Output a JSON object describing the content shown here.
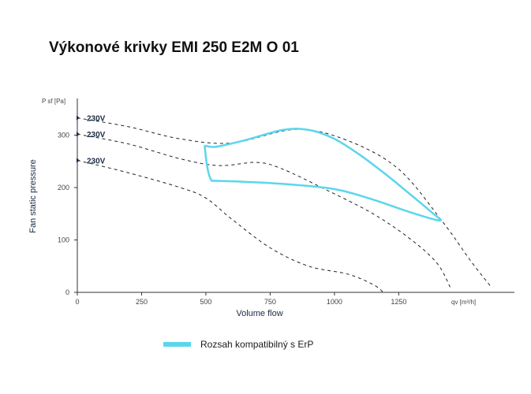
{
  "title": "Výkonové krivky EMI 250 E2M O 01",
  "chart_data": {
    "type": "line",
    "xlabel": "Volume flow",
    "ylabel": "Fan static pressure",
    "x_unit": "qv [m³/h]",
    "y_unit": "P sf [Pa]",
    "xlim": [
      0,
      1700
    ],
    "ylim": [
      0,
      370
    ],
    "x_ticks": [
      0,
      250,
      500,
      750,
      1000,
      1250
    ],
    "y_ticks": [
      0,
      100,
      200,
      300
    ],
    "grid": false,
    "series": [
      {
        "name": "230V",
        "style": "dashed",
        "points": [
          [
            0,
            333
          ],
          [
            200,
            316
          ],
          [
            400,
            293
          ],
          [
            600,
            285
          ],
          [
            850,
            311
          ],
          [
            1050,
            290
          ],
          [
            1250,
            235
          ],
          [
            1420,
            135
          ],
          [
            1530,
            60
          ],
          [
            1610,
            10
          ]
        ]
      },
      {
        "name": "230V",
        "style": "dashed",
        "points": [
          [
            0,
            302
          ],
          [
            200,
            283
          ],
          [
            400,
            255
          ],
          [
            550,
            242
          ],
          [
            700,
            248
          ],
          [
            800,
            235
          ],
          [
            950,
            200
          ],
          [
            1150,
            150
          ],
          [
            1300,
            100
          ],
          [
            1400,
            55
          ],
          [
            1450,
            10
          ]
        ]
      },
      {
        "name": "230V",
        "style": "dashed",
        "points": [
          [
            0,
            252
          ],
          [
            200,
            228
          ],
          [
            400,
            200
          ],
          [
            500,
            180
          ],
          [
            600,
            140
          ],
          [
            750,
            85
          ],
          [
            900,
            50
          ],
          [
            1050,
            35
          ],
          [
            1150,
            15
          ],
          [
            1190,
            0
          ]
        ]
      },
      {
        "name": "Rozsah kompatibilný s ErP",
        "style": "solid",
        "color": "#5bd6ec",
        "points": [
          [
            495,
            280
          ],
          [
            540,
            278
          ],
          [
            650,
            290
          ],
          [
            800,
            310
          ],
          [
            900,
            310
          ],
          [
            1000,
            293
          ],
          [
            1100,
            262
          ],
          [
            1200,
            225
          ],
          [
            1300,
            185
          ],
          [
            1380,
            152
          ],
          [
            1410,
            137
          ],
          [
            1300,
            152
          ],
          [
            1150,
            177
          ],
          [
            1000,
            197
          ],
          [
            800,
            207
          ],
          [
            650,
            211
          ],
          [
            540,
            213
          ],
          [
            520,
            215
          ],
          [
            505,
            240
          ],
          [
            495,
            280
          ]
        ]
      }
    ],
    "legend": {
      "position": "bottom-left",
      "entries": [
        {
          "label": "Rozsah kompatibilný s ErP",
          "color": "#5bd6ec"
        }
      ]
    }
  }
}
